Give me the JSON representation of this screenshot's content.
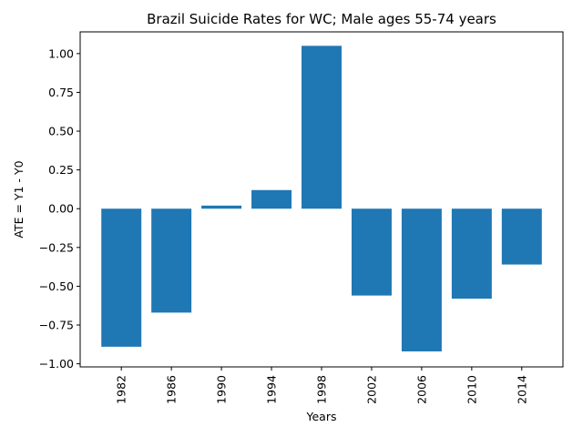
{
  "chart_data": {
    "type": "bar",
    "title": "Brazil Suicide Rates for WC; Male ages 55-74 years",
    "xlabel": "Years",
    "ylabel": "ATE = Y1 - Y0",
    "categories": [
      "1982",
      "1986",
      "1990",
      "1994",
      "1998",
      "2002",
      "2006",
      "2010",
      "2014"
    ],
    "values": [
      -0.89,
      -0.67,
      0.02,
      0.12,
      1.05,
      -0.56,
      -0.92,
      -0.58,
      -0.36
    ],
    "ylim": [
      -1.02,
      1.14
    ],
    "yticks": [
      1.0,
      0.75,
      0.5,
      0.25,
      0.0,
      -0.25,
      -0.5,
      -0.75,
      -1.0
    ],
    "ytick_labels": [
      "1.00",
      "0.75",
      "0.50",
      "0.25",
      "0.00",
      "−0.25",
      "−0.50",
      "−0.75",
      "−1.00"
    ],
    "bar_color": "#1f77b4",
    "grid": false,
    "legend": "none"
  }
}
